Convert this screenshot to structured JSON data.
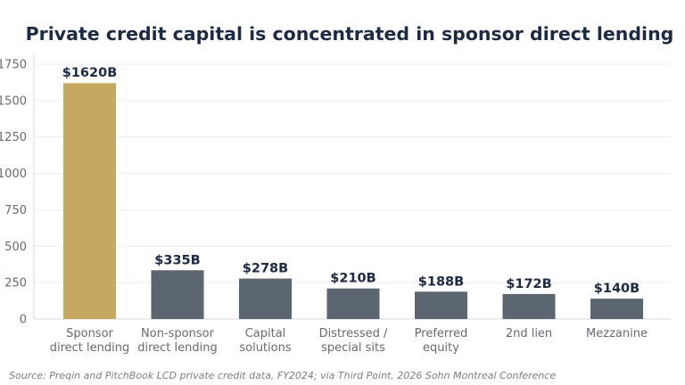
{
  "title": "Private credit capital is concentrated in sponsor direct lending",
  "source_note": "Source: Preqin and PitchBook LCD private credit data, FY2024; via Third Point, 2026 Sohn Montreal Conference",
  "colors": {
    "highlight_bar": "#c7a860",
    "default_bar": "#5c6670",
    "title_text": "#1d2a44",
    "value_label_text": "#1d2a44"
  },
  "chart_data": {
    "type": "bar",
    "title": "Private credit capital is concentrated in sponsor direct lending",
    "xlabel": "",
    "ylabel": "",
    "categories": [
      [
        "Sponsor",
        "direct lending"
      ],
      [
        "Non-sponsor",
        "direct lending"
      ],
      [
        "Capital",
        "solutions"
      ],
      [
        "Distressed /",
        "special sits"
      ],
      [
        "Preferred",
        "equity"
      ],
      [
        "2nd lien"
      ],
      [
        "Mezzanine"
      ]
    ],
    "values": [
      1620,
      335,
      278,
      210,
      188,
      172,
      140
    ],
    "value_labels": [
      "$1620B",
      "$335B",
      "$278B",
      "$210B",
      "$188B",
      "$172B",
      "$140B"
    ],
    "highlight_index": 0,
    "ylim": [
      0,
      1800
    ],
    "yticks": [
      0,
      250,
      500,
      750,
      1000,
      1250,
      1500,
      1750
    ],
    "ytick_labels": [
      "0",
      "250",
      "500",
      "750",
      "1000",
      "1250",
      "1500",
      "1750"
    ],
    "grid": true,
    "legend": "none"
  }
}
